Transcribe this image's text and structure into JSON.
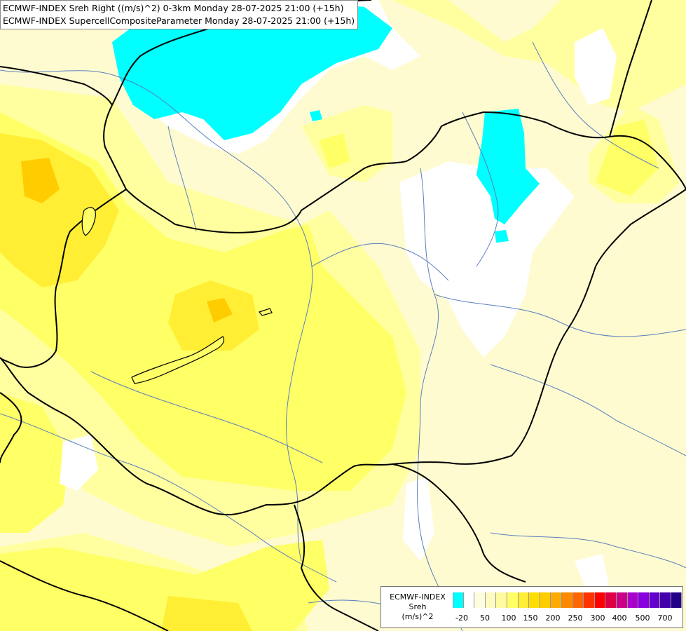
{
  "title_lines": [
    "ECMWF-INDEX Sreh Right ((m/s)^2) 0-3km Monday 28-07-2025 21:00 (+15h)",
    "ECMWF-INDEX SupercellCompositeParameter Monday 28-07-2025 21:00 (+15h)"
  ],
  "legend": {
    "title_lines": [
      "ECMWF-INDEX",
      "Sreh",
      "(m/s)^2"
    ],
    "colors": [
      "#00ffff",
      "#ffffff",
      "#fffde0",
      "#fffbc0",
      "#fff9a0",
      "#ffff66",
      "#ffee33",
      "#ffdd00",
      "#ffcc00",
      "#ffaa00",
      "#ff8800",
      "#ff6600",
      "#ff3300",
      "#ff0000",
      "#dd0044",
      "#cc0088",
      "#aa00cc",
      "#8800dd",
      "#6600cc",
      "#4400aa",
      "#220088"
    ],
    "tick_labels": [
      "-20",
      "50",
      "100",
      "150",
      "200",
      "250",
      "300",
      "400",
      "500",
      "700"
    ]
  },
  "map_colors": {
    "background": "#fffbd0",
    "pale_yellow": "#ffffa0",
    "yellow": "#ffff66",
    "gold": "#ffee33",
    "orange": "#ffcc00",
    "white": "#ffffff",
    "cyan": "#00ffff",
    "border": "#000000",
    "river": "#5a7fbf"
  }
}
